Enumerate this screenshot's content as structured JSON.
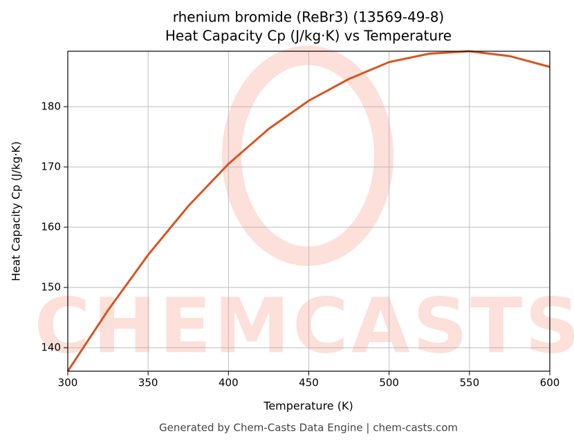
{
  "chart_data": {
    "type": "line",
    "title": "rhenium bromide (ReBr3) (13569-49-8)",
    "subtitle": "Heat Capacity Cp (J/kg·K) vs Temperature",
    "x_label": "Temperature (K)",
    "y_label": "Heat Capacity Cp (J/kg·K)",
    "watermark": "CHEMCASTS",
    "footer": "Generated by Chem-Casts Data Engine | chem-casts.com",
    "x": [
      300,
      325,
      350,
      375,
      400,
      425,
      450,
      475,
      500,
      525,
      550,
      575,
      600
    ],
    "series": [
      {
        "name": "Cp",
        "color": "#d9531e",
        "values": [
          136.1,
          146.2,
          155.4,
          163.5,
          170.5,
          176.3,
          181.0,
          184.6,
          187.4,
          188.8,
          189.2,
          188.4,
          186.6
        ]
      }
    ],
    "xlim": [
      300,
      600
    ],
    "xticks": [
      300,
      350,
      400,
      450,
      500,
      550,
      600
    ],
    "ylim": [
      136.1,
      189.2
    ],
    "yticks": [
      140,
      150,
      160,
      170,
      180
    ],
    "grid": true
  }
}
